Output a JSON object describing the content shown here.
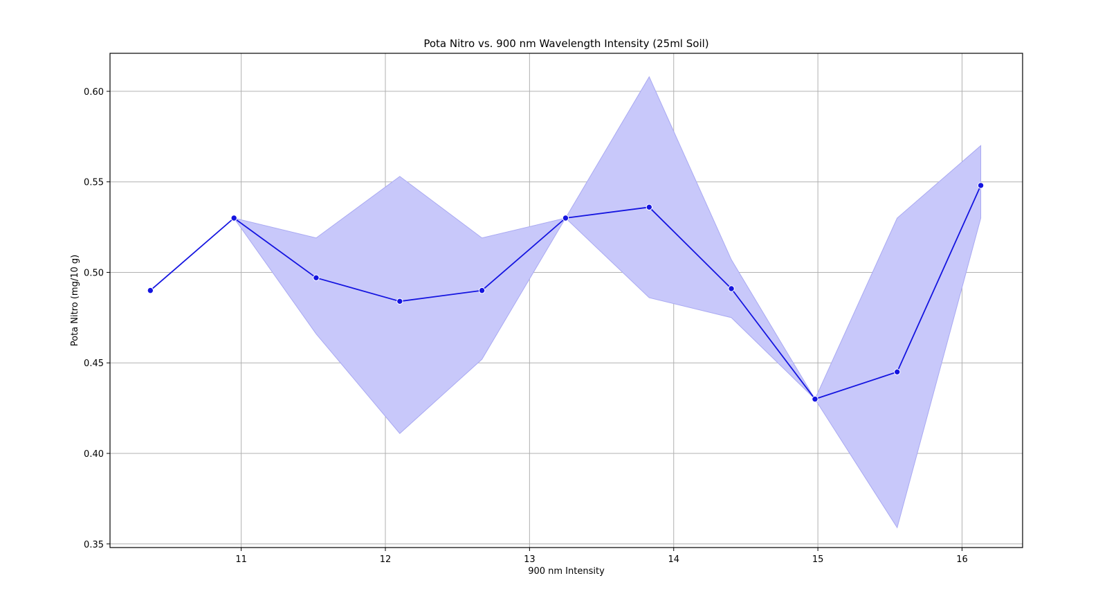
{
  "chart_data": {
    "type": "line",
    "title": "Pota Nitro vs. 900 nm Wavelength Intensity (25ml Soil)",
    "xlabel": "900 nm Intensity",
    "ylabel": "Pota Nitro (mg/10 g)",
    "xlim": [
      10.09,
      16.42
    ],
    "ylim": [
      0.348,
      0.621
    ],
    "x_ticks": [
      11,
      12,
      13,
      14,
      15,
      16
    ],
    "y_ticks": [
      0.35,
      0.4,
      0.45,
      0.5,
      0.55,
      0.6
    ],
    "grid": true,
    "legend": "none",
    "colors": {
      "line": "#1414e0",
      "band_fill": "#c8c8fa",
      "band_edge": "#a9a9f2",
      "grid": "#b0b0b0"
    },
    "series": [
      {
        "x": [
          10.37,
          10.95,
          11.52,
          12.1,
          12.67,
          13.25,
          13.83,
          14.4,
          14.98,
          15.55,
          16.13
        ],
        "values": [
          0.49,
          0.53,
          0.497,
          0.484,
          0.49,
          0.53,
          0.536,
          0.491,
          0.43,
          0.445,
          0.548
        ],
        "ci_lower": [
          0.49,
          0.53,
          0.466,
          0.411,
          0.452,
          0.53,
          0.486,
          0.475,
          0.43,
          0.359,
          0.53
        ],
        "ci_upper": [
          0.49,
          0.53,
          0.519,
          0.553,
          0.519,
          0.53,
          0.608,
          0.507,
          0.43,
          0.53,
          0.57
        ]
      }
    ]
  }
}
